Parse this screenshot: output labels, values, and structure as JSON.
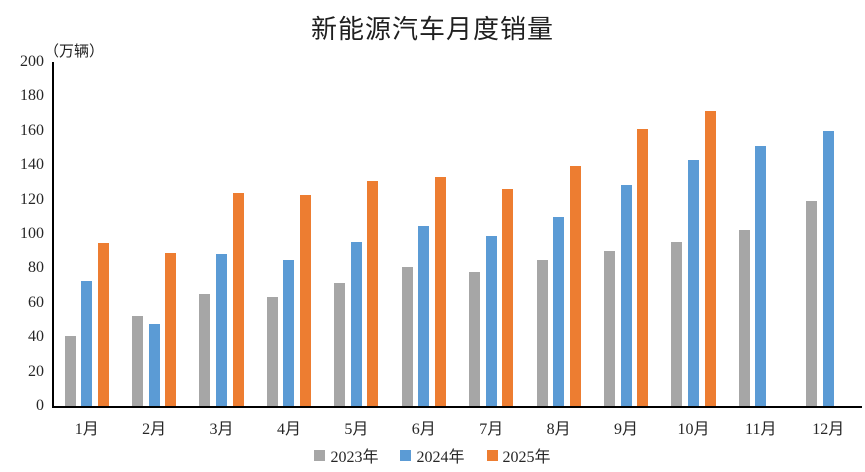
{
  "chart_data": {
    "type": "bar",
    "title": "新能源汽车月度销量",
    "unit_label": "（万辆）",
    "xlabel": "",
    "ylabel": "万辆",
    "categories": [
      "1月",
      "2月",
      "3月",
      "4月",
      "5月",
      "6月",
      "7月",
      "8月",
      "9月",
      "10月",
      "11月",
      "12月"
    ],
    "series": [
      {
        "name": "2023年",
        "color": "#A6A6A6",
        "values": [
          40.8,
          52.5,
          65.3,
          63.6,
          71.7,
          80.6,
          78.0,
          84.6,
          90.4,
          95.6,
          102.6,
          119.1
        ]
      },
      {
        "name": "2024年",
        "color": "#5B9BD5",
        "values": [
          72.9,
          47.7,
          88.3,
          85.0,
          95.5,
          104.9,
          99.1,
          110.0,
          128.7,
          143.0,
          151.2,
          159.6
        ]
      },
      {
        "name": "2025年",
        "color": "#ED7D31",
        "values": [
          94.5,
          89.2,
          123.7,
          122.6,
          130.7,
          132.9,
          126.2,
          139.5,
          160.9,
          171.5,
          null,
          null
        ]
      }
    ],
    "ylim": [
      0,
      200
    ],
    "yticks": [
      0,
      20,
      40,
      60,
      80,
      100,
      120,
      140,
      160,
      180,
      200
    ],
    "grid": false,
    "legend_position": "bottom",
    "axis_color": "#000000",
    "text_color": "#262626"
  }
}
